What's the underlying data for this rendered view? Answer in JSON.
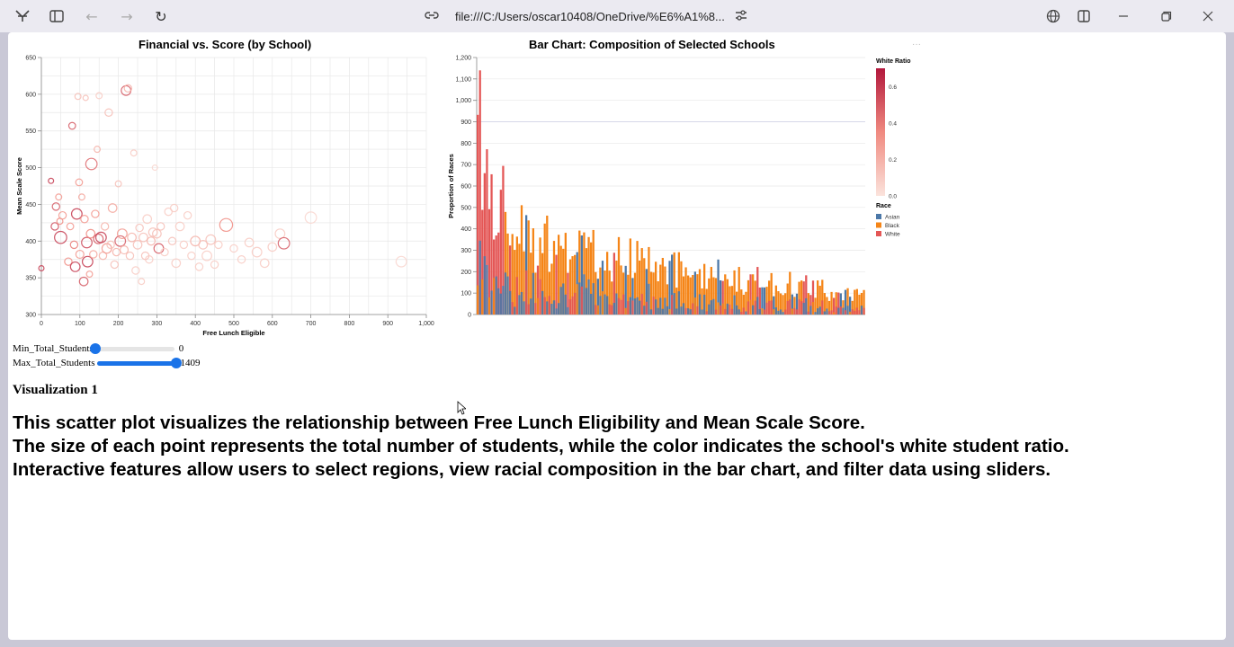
{
  "browser": {
    "url": "file:///C:/Users/oscar10408/OneDrive/%E6%A1%8...",
    "icons": [
      "app-icon",
      "sidebar-icon",
      "back-icon",
      "forward-icon",
      "refresh-icon",
      "site-info-icon",
      "page-settings-icon",
      "translate-icon",
      "split-view-icon",
      "minimize-icon",
      "restore-icon",
      "close-icon"
    ]
  },
  "scatter": {
    "title": "Financial vs. Score (by School)",
    "xlabel": "Free Lunch Eligible",
    "ylabel": "Mean Scale Score",
    "xticks": [
      "0",
      "100",
      "200",
      "300",
      "400",
      "500",
      "600",
      "700",
      "800",
      "900",
      "1,000"
    ],
    "yticks": [
      "300",
      "350",
      "400",
      "450",
      "500",
      "550",
      "600",
      "650"
    ]
  },
  "bar": {
    "title": "Bar Chart: Composition of Selected Schools",
    "ylabel": "Proportion of Races",
    "yticks": [
      "0",
      "100",
      "200",
      "300",
      "400",
      "500",
      "600",
      "700",
      "800",
      "900",
      "1,000",
      "1,100",
      "1,200"
    ],
    "legend_ratio_title": "White Ratio",
    "legend_ratio_ticks": [
      "0.6",
      "0.4",
      "0.2",
      "0.0"
    ],
    "legend_race_title": "Race",
    "legend_race_items": [
      {
        "label": "Asian",
        "color": "#4c78a8"
      },
      {
        "label": "Black",
        "color": "#f58518"
      },
      {
        "label": "White",
        "color": "#e45756"
      }
    ]
  },
  "sliders": {
    "min_label": "Min_Total_Students",
    "min_value": "0",
    "min_fraction": 0,
    "max_label": "Max_Total_Students",
    "max_value": "1409",
    "max_fraction": 1
  },
  "visualization_heading": "Visualization 1",
  "description": [
    "This scatter plot visualizes the relationship between Free Lunch Eligibility and Mean Scale Score.",
    "The size of each point represents the total number of students, while the color indicates the school's white student ratio.",
    "Interactive features allow users to select regions, view racial composition in the bar chart, and filter data using sliders."
  ],
  "chart_data": [
    {
      "type": "scatter",
      "title": "Financial vs. Score (by School)",
      "xlabel": "Free Lunch Eligible",
      "ylabel": "Mean Scale Score",
      "xlim": [
        0,
        1000
      ],
      "ylim": [
        300,
        650
      ],
      "grid": true,
      "points": [
        {
          "x": 0,
          "y": 363,
          "size": 150,
          "ratio": 0.6
        },
        {
          "x": 25,
          "y": 482,
          "size": 150,
          "ratio": 0.6
        },
        {
          "x": 35,
          "y": 420,
          "size": 300,
          "ratio": 0.55
        },
        {
          "x": 38,
          "y": 447,
          "size": 300,
          "ratio": 0.5
        },
        {
          "x": 45,
          "y": 460,
          "size": 200,
          "ratio": 0.3
        },
        {
          "x": 48,
          "y": 427,
          "size": 200,
          "ratio": 0.35
        },
        {
          "x": 50,
          "y": 405,
          "size": 800,
          "ratio": 0.6
        },
        {
          "x": 55,
          "y": 435,
          "size": 300,
          "ratio": 0.3
        },
        {
          "x": 70,
          "y": 372,
          "size": 300,
          "ratio": 0.35
        },
        {
          "x": 75,
          "y": 420,
          "size": 250,
          "ratio": 0.3
        },
        {
          "x": 80,
          "y": 557,
          "size": 250,
          "ratio": 0.5
        },
        {
          "x": 85,
          "y": 395,
          "size": 300,
          "ratio": 0.4
        },
        {
          "x": 88,
          "y": 365,
          "size": 500,
          "ratio": 0.6
        },
        {
          "x": 92,
          "y": 437,
          "size": 600,
          "ratio": 0.6
        },
        {
          "x": 95,
          "y": 597,
          "size": 200,
          "ratio": 0.15
        },
        {
          "x": 98,
          "y": 480,
          "size": 250,
          "ratio": 0.3
        },
        {
          "x": 100,
          "y": 382,
          "size": 350,
          "ratio": 0.3
        },
        {
          "x": 105,
          "y": 460,
          "size": 200,
          "ratio": 0.25
        },
        {
          "x": 110,
          "y": 345,
          "size": 400,
          "ratio": 0.5
        },
        {
          "x": 112,
          "y": 430,
          "size": 300,
          "ratio": 0.3
        },
        {
          "x": 115,
          "y": 595,
          "size": 150,
          "ratio": 0.15
        },
        {
          "x": 118,
          "y": 398,
          "size": 600,
          "ratio": 0.55
        },
        {
          "x": 120,
          "y": 372,
          "size": 600,
          "ratio": 0.6
        },
        {
          "x": 125,
          "y": 355,
          "size": 200,
          "ratio": 0.3
        },
        {
          "x": 128,
          "y": 410,
          "size": 400,
          "ratio": 0.35
        },
        {
          "x": 130,
          "y": 505,
          "size": 700,
          "ratio": 0.45
        },
        {
          "x": 135,
          "y": 382,
          "size": 300,
          "ratio": 0.25
        },
        {
          "x": 140,
          "y": 437,
          "size": 300,
          "ratio": 0.3
        },
        {
          "x": 145,
          "y": 525,
          "size": 200,
          "ratio": 0.2
        },
        {
          "x": 148,
          "y": 403,
          "size": 500,
          "ratio": 0.5
        },
        {
          "x": 150,
          "y": 598,
          "size": 200,
          "ratio": 0.1
        },
        {
          "x": 155,
          "y": 405,
          "size": 600,
          "ratio": 0.6
        },
        {
          "x": 160,
          "y": 380,
          "size": 300,
          "ratio": 0.2
        },
        {
          "x": 165,
          "y": 420,
          "size": 300,
          "ratio": 0.2
        },
        {
          "x": 170,
          "y": 390,
          "size": 500,
          "ratio": 0.3
        },
        {
          "x": 175,
          "y": 575,
          "size": 300,
          "ratio": 0.15
        },
        {
          "x": 180,
          "y": 395,
          "size": 300,
          "ratio": 0.15
        },
        {
          "x": 185,
          "y": 445,
          "size": 400,
          "ratio": 0.25
        },
        {
          "x": 190,
          "y": 368,
          "size": 300,
          "ratio": 0.15
        },
        {
          "x": 195,
          "y": 385,
          "size": 300,
          "ratio": 0.2
        },
        {
          "x": 200,
          "y": 478,
          "size": 200,
          "ratio": 0.15
        },
        {
          "x": 205,
          "y": 400,
          "size": 600,
          "ratio": 0.5
        },
        {
          "x": 210,
          "y": 410,
          "size": 500,
          "ratio": 0.3
        },
        {
          "x": 215,
          "y": 388,
          "size": 350,
          "ratio": 0.2
        },
        {
          "x": 220,
          "y": 605,
          "size": 500,
          "ratio": 0.5
        },
        {
          "x": 225,
          "y": 608,
          "size": 300,
          "ratio": 0.2
        },
        {
          "x": 230,
          "y": 380,
          "size": 300,
          "ratio": 0.15
        },
        {
          "x": 235,
          "y": 405,
          "size": 400,
          "ratio": 0.2
        },
        {
          "x": 240,
          "y": 520,
          "size": 200,
          "ratio": 0.1
        },
        {
          "x": 245,
          "y": 360,
          "size": 300,
          "ratio": 0.1
        },
        {
          "x": 250,
          "y": 395,
          "size": 400,
          "ratio": 0.15
        },
        {
          "x": 255,
          "y": 418,
          "size": 300,
          "ratio": 0.15
        },
        {
          "x": 260,
          "y": 345,
          "size": 200,
          "ratio": 0.1
        },
        {
          "x": 265,
          "y": 405,
          "size": 400,
          "ratio": 0.15
        },
        {
          "x": 270,
          "y": 380,
          "size": 300,
          "ratio": 0.15
        },
        {
          "x": 275,
          "y": 430,
          "size": 400,
          "ratio": 0.1
        },
        {
          "x": 280,
          "y": 375,
          "size": 300,
          "ratio": 0.1
        },
        {
          "x": 285,
          "y": 400,
          "size": 350,
          "ratio": 0.2
        },
        {
          "x": 290,
          "y": 412,
          "size": 400,
          "ratio": 0.15
        },
        {
          "x": 295,
          "y": 500,
          "size": 150,
          "ratio": 0.05
        },
        {
          "x": 300,
          "y": 410,
          "size": 400,
          "ratio": 0.15
        },
        {
          "x": 305,
          "y": 390,
          "size": 500,
          "ratio": 0.5
        },
        {
          "x": 310,
          "y": 420,
          "size": 300,
          "ratio": 0.15
        },
        {
          "x": 320,
          "y": 385,
          "size": 300,
          "ratio": 0.1
        },
        {
          "x": 330,
          "y": 440,
          "size": 300,
          "ratio": 0.1
        },
        {
          "x": 340,
          "y": 400,
          "size": 300,
          "ratio": 0.15
        },
        {
          "x": 345,
          "y": 445,
          "size": 300,
          "ratio": 0.1
        },
        {
          "x": 350,
          "y": 370,
          "size": 400,
          "ratio": 0.1
        },
        {
          "x": 360,
          "y": 420,
          "size": 400,
          "ratio": 0.1
        },
        {
          "x": 370,
          "y": 395,
          "size": 300,
          "ratio": 0.1
        },
        {
          "x": 380,
          "y": 435,
          "size": 300,
          "ratio": 0.1
        },
        {
          "x": 390,
          "y": 380,
          "size": 300,
          "ratio": 0.1
        },
        {
          "x": 400,
          "y": 400,
          "size": 500,
          "ratio": 0.2
        },
        {
          "x": 410,
          "y": 365,
          "size": 300,
          "ratio": 0.1
        },
        {
          "x": 420,
          "y": 395,
          "size": 400,
          "ratio": 0.15
        },
        {
          "x": 430,
          "y": 380,
          "size": 500,
          "ratio": 0.1
        },
        {
          "x": 440,
          "y": 402,
          "size": 500,
          "ratio": 0.15
        },
        {
          "x": 450,
          "y": 368,
          "size": 300,
          "ratio": 0.1
        },
        {
          "x": 460,
          "y": 395,
          "size": 300,
          "ratio": 0.1
        },
        {
          "x": 480,
          "y": 422,
          "size": 900,
          "ratio": 0.35
        },
        {
          "x": 500,
          "y": 390,
          "size": 300,
          "ratio": 0.1
        },
        {
          "x": 520,
          "y": 375,
          "size": 300,
          "ratio": 0.1
        },
        {
          "x": 540,
          "y": 398,
          "size": 400,
          "ratio": 0.1
        },
        {
          "x": 560,
          "y": 385,
          "size": 500,
          "ratio": 0.1
        },
        {
          "x": 580,
          "y": 370,
          "size": 400,
          "ratio": 0.1
        },
        {
          "x": 600,
          "y": 392,
          "size": 400,
          "ratio": 0.1
        },
        {
          "x": 620,
          "y": 410,
          "size": 500,
          "ratio": 0.1
        },
        {
          "x": 630,
          "y": 397,
          "size": 700,
          "ratio": 0.5
        },
        {
          "x": 700,
          "y": 432,
          "size": 700,
          "ratio": 0.05
        },
        {
          "x": 935,
          "y": 372,
          "size": 600,
          "ratio": 0.05
        }
      ]
    },
    {
      "type": "bar",
      "title": "Bar Chart: Composition of Selected Schools",
      "ylabel": "Proportion of Races",
      "ylim": [
        0,
        1200
      ],
      "grid": true,
      "series": [
        {
          "name": "Asian",
          "color": "#4c78a8"
        },
        {
          "name": "Black",
          "color": "#f58518"
        },
        {
          "name": "White",
          "color": "#e45756"
        }
      ],
      "bar_totals_approx": [
        1140,
        840,
        730,
        610,
        520,
        480,
        470,
        410,
        450,
        430,
        420,
        390,
        380,
        350,
        360,
        330,
        380,
        320,
        340,
        310,
        300,
        290,
        290,
        270,
        280,
        260,
        250,
        260,
        240,
        230,
        225,
        220,
        210,
        210,
        200,
        195,
        190,
        185,
        180,
        170,
        175,
        165,
        160,
        150,
        150,
        140,
        140,
        130,
        120,
        110,
        100
      ]
    }
  ]
}
